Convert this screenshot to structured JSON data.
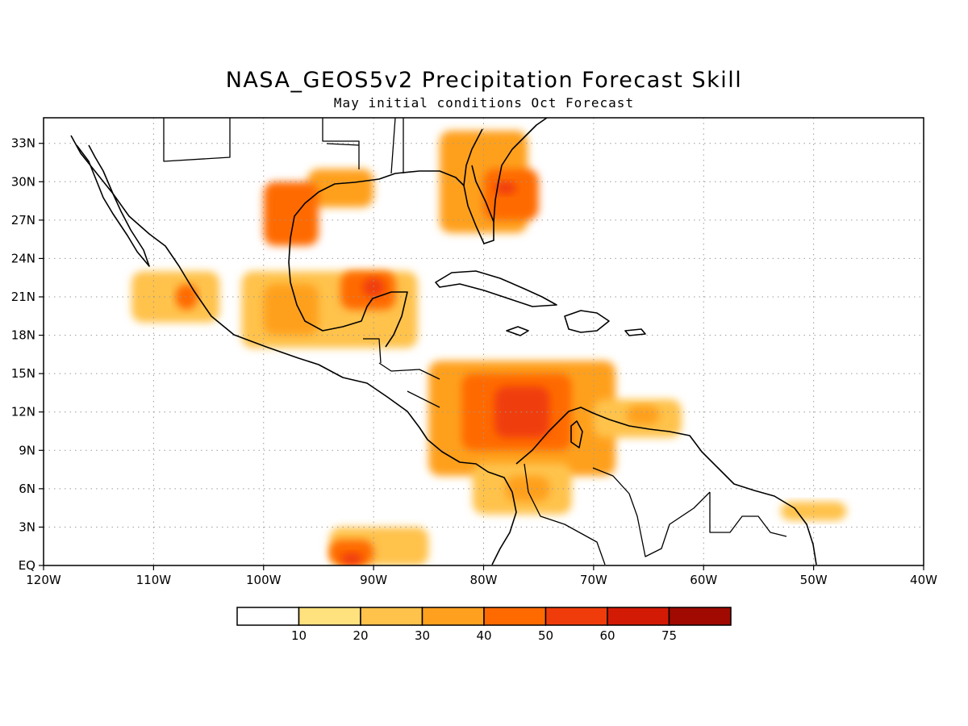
{
  "title": "NASA_GEOS5v2 Precipitation Forecast Skill",
  "subtitle": "May initial conditions  Oct Forecast",
  "map": {
    "lon_range": [
      -120,
      -40
    ],
    "lat_range": [
      0,
      35
    ],
    "lon_ticks": [
      {
        "value": -120,
        "label": "120W"
      },
      {
        "value": -110,
        "label": "110W"
      },
      {
        "value": -100,
        "label": "100W"
      },
      {
        "value": -90,
        "label": "90W"
      },
      {
        "value": -80,
        "label": "80W"
      },
      {
        "value": -70,
        "label": "70W"
      },
      {
        "value": -60,
        "label": "60W"
      },
      {
        "value": -50,
        "label": "50W"
      },
      {
        "value": -40,
        "label": "40W"
      }
    ],
    "lat_ticks": [
      {
        "value": 0,
        "label": "EQ"
      },
      {
        "value": 3,
        "label": "3N"
      },
      {
        "value": 6,
        "label": "6N"
      },
      {
        "value": 9,
        "label": "9N"
      },
      {
        "value": 12,
        "label": "12N"
      },
      {
        "value": 15,
        "label": "15N"
      },
      {
        "value": 18,
        "label": "18N"
      },
      {
        "value": 21,
        "label": "21N"
      },
      {
        "value": 24,
        "label": "24N"
      },
      {
        "value": 27,
        "label": "27N"
      },
      {
        "value": 30,
        "label": "30N"
      },
      {
        "value": 33,
        "label": "33N"
      }
    ],
    "grid": true
  },
  "colorbar": {
    "colors": [
      "#ffffff",
      "#ffe17e",
      "#ffc24b",
      "#ffa01e",
      "#ff6a00",
      "#f03c0a",
      "#d21a04",
      "#a00a00"
    ],
    "labels": [
      "10",
      "20",
      "30",
      "40",
      "50",
      "60",
      "75"
    ]
  },
  "chart_data": {
    "type": "heatmap",
    "title": "NASA_GEOS5v2 Precipitation Forecast Skill",
    "subtitle": "May initial conditions  Oct Forecast",
    "xlim": [
      -120,
      -40
    ],
    "ylim": [
      0,
      35
    ],
    "levels": [
      10,
      20,
      30,
      40,
      50,
      60,
      75
    ],
    "skill_regions": [
      {
        "lon": [
          -96,
          -90
        ],
        "lat": [
          28,
          31
        ],
        "value": 30
      },
      {
        "lon": [
          -100,
          -95
        ],
        "lat": [
          25,
          30
        ],
        "value": 40
      },
      {
        "lon": [
          -84,
          -76
        ],
        "lat": [
          26,
          34
        ],
        "value": 30
      },
      {
        "lon": [
          -80,
          -75
        ],
        "lat": [
          27,
          31
        ],
        "value": 40
      },
      {
        "lon": [
          -79,
          -77
        ],
        "lat": [
          29,
          30
        ],
        "value": 50
      },
      {
        "lon": [
          -112,
          -104
        ],
        "lat": [
          19,
          23
        ],
        "value": 20
      },
      {
        "lon": [
          -108,
          -106
        ],
        "lat": [
          20,
          22
        ],
        "value": 40
      },
      {
        "lon": [
          -102,
          -86
        ],
        "lat": [
          17,
          23
        ],
        "value": 20
      },
      {
        "lon": [
          -100,
          -95
        ],
        "lat": [
          18,
          22
        ],
        "value": 30
      },
      {
        "lon": [
          -93,
          -88
        ],
        "lat": [
          20,
          23
        ],
        "value": 40
      },
      {
        "lon": [
          -91,
          -89
        ],
        "lat": [
          21,
          22.5
        ],
        "value": 50
      },
      {
        "lon": [
          -85,
          -68
        ],
        "lat": [
          7,
          16
        ],
        "value": 30
      },
      {
        "lon": [
          -82,
          -72
        ],
        "lat": [
          9,
          15
        ],
        "value": 40
      },
      {
        "lon": [
          -79,
          -74
        ],
        "lat": [
          10,
          14
        ],
        "value": 50
      },
      {
        "lon": [
          -70,
          -62
        ],
        "lat": [
          10,
          13
        ],
        "value": 20
      },
      {
        "lon": [
          -67,
          -64
        ],
        "lat": [
          11,
          12.5
        ],
        "value": 30
      },
      {
        "lon": [
          -81,
          -72
        ],
        "lat": [
          4,
          8
        ],
        "value": 20
      },
      {
        "lon": [
          -78,
          -74
        ],
        "lat": [
          5,
          7
        ],
        "value": 30
      },
      {
        "lon": [
          -94,
          -85
        ],
        "lat": [
          0,
          3
        ],
        "value": 20
      },
      {
        "lon": [
          -94,
          -90
        ],
        "lat": [
          0,
          2
        ],
        "value": 40
      },
      {
        "lon": [
          -93,
          -91
        ],
        "lat": [
          0,
          1
        ],
        "value": 50
      },
      {
        "lon": [
          -53,
          -47
        ],
        "lat": [
          3.5,
          5
        ],
        "value": 20
      }
    ]
  }
}
